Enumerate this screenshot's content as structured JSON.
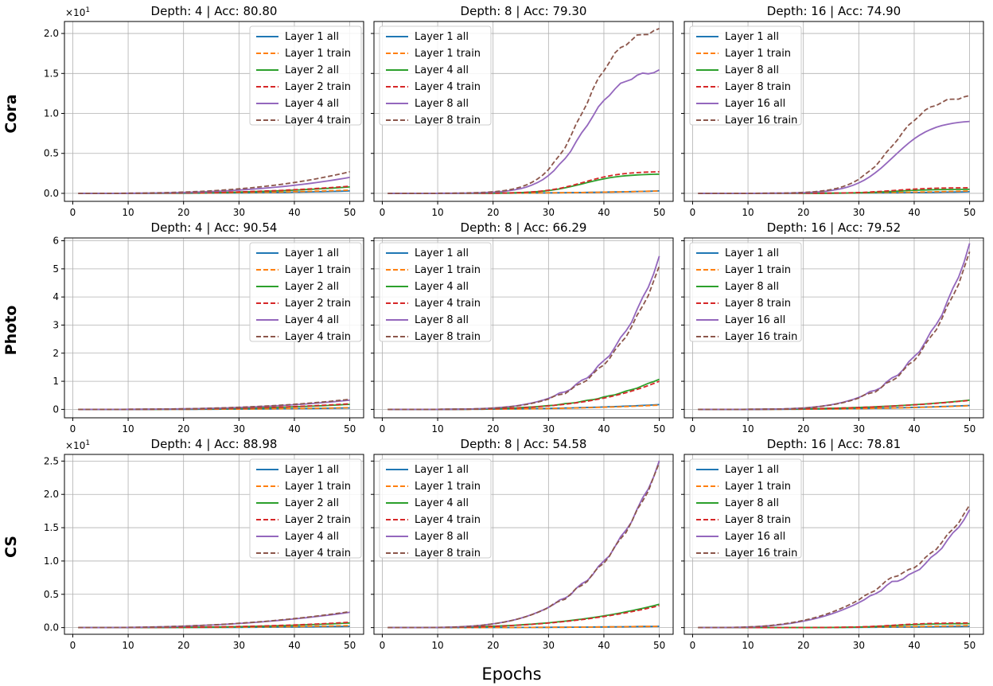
{
  "figure": {
    "xlabel": "Epochs",
    "row_labels": [
      "Cora",
      "Photo",
      "CS"
    ],
    "scale_label_prefix": "×10",
    "scale_label_exp": "1"
  },
  "colors": {
    "layer_first": "#1f77b4",
    "layer_first_train": "#ff7f0e",
    "layer_mid": "#2ca02c",
    "layer_mid_train": "#d62728",
    "layer_last": "#9467bd",
    "layer_last_train": "#8c564b",
    "grid": "#b0b0b0"
  },
  "chart_data": [
    {
      "row": "Cora",
      "title": "Depth: 4 | Acc: 80.80",
      "type": "line",
      "scale_label": true,
      "ylim": [
        -0.1,
        2.15
      ],
      "yticks": [
        0.0,
        0.5,
        1.0,
        1.5,
        2.0
      ],
      "xticks": [
        0,
        10,
        20,
        30,
        40,
        50
      ],
      "xlim": [
        -1.5,
        52.5
      ],
      "legend_loc": "top-right",
      "series": [
        {
          "name": "Layer 1 all",
          "end": 0.03,
          "p": 3
        },
        {
          "name": "Layer 1 train",
          "end": 0.04,
          "p": 3
        },
        {
          "name": "Layer 2 all",
          "end": 0.08,
          "p": 3
        },
        {
          "name": "Layer 2 train",
          "end": 0.09,
          "p": 3
        },
        {
          "name": "Layer 4 all",
          "end": 0.2,
          "p": 3
        },
        {
          "name": "Layer 4 train",
          "end": 0.27,
          "p": 3
        }
      ]
    },
    {
      "row": "Cora",
      "title": "Depth: 8 | Acc: 79.30",
      "type": "line",
      "scale_label": false,
      "ylim": [
        -0.1,
        2.15
      ],
      "yticks": [
        0.0,
        0.5,
        1.0,
        1.5,
        2.0
      ],
      "xticks": [
        0,
        10,
        20,
        30,
        40,
        50
      ],
      "xlim": [
        -1.5,
        52.5
      ],
      "legend_loc": "top-left",
      "series": [
        {
          "name": "Layer 1 all",
          "end": 0.03,
          "p": 3
        },
        {
          "name": "Layer 1 train",
          "end": 0.03,
          "p": 3
        },
        {
          "name": "Layer 4 all",
          "end": 0.24,
          "p": "sat",
          "sat": 0.24
        },
        {
          "name": "Layer 4 train",
          "end": 0.27,
          "p": "sat",
          "sat": 0.27
        },
        {
          "name": "Layer 8 all",
          "end": 1.53,
          "p": "sat",
          "sat": 1.53
        },
        {
          "name": "Layer 8 train",
          "end": 2.04,
          "p": "sat",
          "sat": 2.04
        }
      ]
    },
    {
      "row": "Cora",
      "title": "Depth: 16 | Acc: 74.90",
      "type": "line",
      "scale_label": false,
      "ylim": [
        -0.1,
        2.15
      ],
      "yticks": [
        0.0,
        0.5,
        1.0,
        1.5,
        2.0
      ],
      "xticks": [
        0,
        10,
        20,
        30,
        40,
        50
      ],
      "xlim": [
        -1.5,
        52.5
      ],
      "legend_loc": "top-left",
      "series": [
        {
          "name": "Layer 1 all",
          "end": 0.02,
          "p": 3
        },
        {
          "name": "Layer 1 train",
          "end": 0.03,
          "p": 3
        },
        {
          "name": "Layer 8 all",
          "end": 0.05,
          "p": "sat",
          "sat": 0.05
        },
        {
          "name": "Layer 8 train",
          "end": 0.07,
          "p": "sat",
          "sat": 0.07
        },
        {
          "name": "Layer 16 all",
          "end": 0.9,
          "p": "sat",
          "sat": 0.9
        },
        {
          "name": "Layer 16 train",
          "end": 1.21,
          "p": "sat",
          "sat": 1.21
        }
      ]
    },
    {
      "row": "Photo",
      "title": "Depth: 4 | Acc: 90.54",
      "type": "line",
      "scale_label": false,
      "ylim": [
        -0.3,
        6.1
      ],
      "yticks": [
        0,
        1,
        2,
        3,
        4,
        5,
        6
      ],
      "xticks": [
        0,
        10,
        20,
        30,
        40,
        50
      ],
      "xlim": [
        -1.5,
        52.5
      ],
      "legend_loc": "top-right",
      "series": [
        {
          "name": "Layer 1 all",
          "end": 0.05,
          "p": 3
        },
        {
          "name": "Layer 1 train",
          "end": 0.06,
          "p": 3
        },
        {
          "name": "Layer 2 all",
          "end": 0.18,
          "p": 3
        },
        {
          "name": "Layer 2 train",
          "end": 0.2,
          "p": 3
        },
        {
          "name": "Layer 4 all",
          "end": 0.33,
          "p": 3
        },
        {
          "name": "Layer 4 train",
          "end": 0.36,
          "p": 3
        }
      ]
    },
    {
      "row": "Photo",
      "title": "Depth: 8 | Acc: 66.29",
      "type": "line",
      "scale_label": false,
      "ylim": [
        -0.3,
        6.1
      ],
      "yticks": [
        0,
        1,
        2,
        3,
        4,
        5,
        6
      ],
      "xticks": [
        0,
        10,
        20,
        30,
        40,
        50
      ],
      "xlim": [
        -1.5,
        52.5
      ],
      "legend_loc": "top-left",
      "series": [
        {
          "name": "Layer 1 all",
          "end": 0.17,
          "p": 3
        },
        {
          "name": "Layer 1 train",
          "end": 0.15,
          "p": 3
        },
        {
          "name": "Layer 4 all",
          "end": 1.08,
          "p": 4
        },
        {
          "name": "Layer 4 train",
          "end": 1.0,
          "p": 4
        },
        {
          "name": "Layer 8 all",
          "end": 5.4,
          "p": 5
        },
        {
          "name": "Layer 8 train",
          "end": 5.05,
          "p": 5
        }
      ]
    },
    {
      "row": "Photo",
      "title": "Depth: 16 | Acc: 79.52",
      "type": "line",
      "scale_label": false,
      "ylim": [
        -0.3,
        6.1
      ],
      "yticks": [
        0,
        1,
        2,
        3,
        4,
        5,
        6
      ],
      "xticks": [
        0,
        10,
        20,
        30,
        40,
        50
      ],
      "xlim": [
        -1.5,
        52.5
      ],
      "legend_loc": "top-left",
      "series": [
        {
          "name": "Layer 1 all",
          "end": 0.14,
          "p": 3
        },
        {
          "name": "Layer 1 train",
          "end": 0.13,
          "p": 3
        },
        {
          "name": "Layer 8 all",
          "end": 0.33,
          "p": 3
        },
        {
          "name": "Layer 8 train",
          "end": 0.32,
          "p": 3
        },
        {
          "name": "Layer 16 all",
          "end": 5.85,
          "p": 5
        },
        {
          "name": "Layer 16 train",
          "end": 5.55,
          "p": 5
        }
      ]
    },
    {
      "row": "CS",
      "title": "Depth: 4 | Acc: 88.98",
      "type": "line",
      "scale_label": true,
      "ylim": [
        -0.1,
        2.6
      ],
      "yticks": [
        0.0,
        0.5,
        1.0,
        1.5,
        2.0,
        2.5
      ],
      "xticks": [
        0,
        10,
        20,
        30,
        40,
        50
      ],
      "xlim": [
        -1.5,
        52.5
      ],
      "legend_loc": "top-right",
      "series": [
        {
          "name": "Layer 1 all",
          "end": 0.02,
          "p": 3
        },
        {
          "name": "Layer 1 train",
          "end": 0.03,
          "p": 3
        },
        {
          "name": "Layer 2 all",
          "end": 0.07,
          "p": 3
        },
        {
          "name": "Layer 2 train",
          "end": 0.08,
          "p": 3
        },
        {
          "name": "Layer 4 all",
          "end": 0.23,
          "p": 2.5
        },
        {
          "name": "Layer 4 train",
          "end": 0.24,
          "p": 2.5
        }
      ]
    },
    {
      "row": "CS",
      "title": "Depth: 8 | Acc: 54.58",
      "type": "line",
      "scale_label": false,
      "ylim": [
        -0.1,
        2.6
      ],
      "yticks": [
        0.0,
        0.5,
        1.0,
        1.5,
        2.0,
        2.5
      ],
      "xticks": [
        0,
        10,
        20,
        30,
        40,
        50
      ],
      "xlim": [
        -1.5,
        52.5
      ],
      "legend_loc": "top-left",
      "series": [
        {
          "name": "Layer 1 all",
          "end": 0.02,
          "p": 3
        },
        {
          "name": "Layer 1 train",
          "end": 0.02,
          "p": 3
        },
        {
          "name": "Layer 4 all",
          "end": 0.35,
          "p": 3
        },
        {
          "name": "Layer 4 train",
          "end": 0.33,
          "p": 3
        },
        {
          "name": "Layer 8 all",
          "end": 2.48,
          "p": 4
        },
        {
          "name": "Layer 8 train",
          "end": 2.45,
          "p": 4
        }
      ]
    },
    {
      "row": "CS",
      "title": "Depth: 16 | Acc: 78.81",
      "type": "line",
      "scale_label": false,
      "ylim": [
        -0.1,
        2.6
      ],
      "yticks": [
        0.0,
        0.5,
        1.0,
        1.5,
        2.0,
        2.5
      ],
      "xticks": [
        0,
        10,
        20,
        30,
        40,
        50
      ],
      "xlim": [
        -1.5,
        52.5
      ],
      "legend_loc": "top-left",
      "series": [
        {
          "name": "Layer 1 all",
          "end": 0.02,
          "p": 3
        },
        {
          "name": "Layer 1 train",
          "end": 0.03,
          "p": 3
        },
        {
          "name": "Layer 8 all",
          "end": 0.06,
          "p": "sat",
          "sat": 0.06
        },
        {
          "name": "Layer 8 train",
          "end": 0.07,
          "p": "sat",
          "sat": 0.07
        },
        {
          "name": "Layer 16 all",
          "end": 1.75,
          "p": "bump",
          "bump": 0.7
        },
        {
          "name": "Layer 16 train",
          "end": 1.82,
          "p": "bump",
          "bump": 0.78
        }
      ]
    }
  ]
}
